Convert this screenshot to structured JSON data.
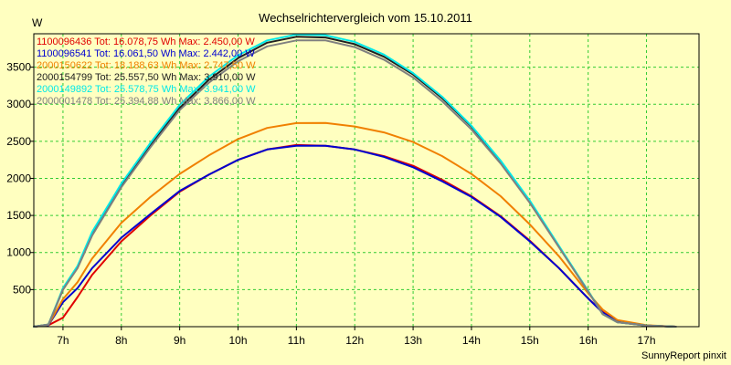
{
  "colors": {
    "background": "#ffffc0",
    "plot_background": "#ffffc0",
    "grid": "#33cc33",
    "axis": "#000000"
  },
  "footer": "SunnyReport pinxit",
  "chart_data": {
    "type": "line",
    "title": "Wechselrichtervergleich vom 15.10.2011",
    "ylabel": "W",
    "xlabel": "",
    "x_unit": "h",
    "xlim": [
      6.5,
      17.9
    ],
    "ylim": [
      0,
      3950
    ],
    "x_ticks": [
      7,
      8,
      9,
      10,
      11,
      12,
      13,
      14,
      15,
      16,
      17
    ],
    "x_tick_labels": [
      "7h",
      "8h",
      "9h",
      "10h",
      "11h",
      "12h",
      "13h",
      "14h",
      "15h",
      "16h",
      "17h"
    ],
    "y_ticks": [
      500,
      1000,
      1500,
      2000,
      2500,
      3000,
      3500
    ],
    "y_tick_labels": [
      "500",
      "1000",
      "1500",
      "2000",
      "2500",
      "3000",
      "3500"
    ],
    "grid": true,
    "legend_position": "top-left",
    "series": [
      {
        "name": "1100096436 Tot: 16.078,75 Wh Max: 2.450,00 W",
        "color": "#e00000",
        "x": [
          6.5,
          6.75,
          7.0,
          7.25,
          7.5,
          8.0,
          8.5,
          9.0,
          9.5,
          10.0,
          10.5,
          11.0,
          11.5,
          12.0,
          12.5,
          13.0,
          13.5,
          14.0,
          14.5,
          15.0,
          15.5,
          16.0,
          16.25,
          16.5,
          17.0,
          17.5
        ],
        "y": [
          0,
          20,
          120,
          400,
          700,
          1150,
          1500,
          1820,
          2050,
          2250,
          2390,
          2450,
          2440,
          2390,
          2300,
          2170,
          1980,
          1760,
          1490,
          1160,
          790,
          380,
          200,
          70,
          15,
          0
        ]
      },
      {
        "name": "1100096541 Tot: 16.061,50 Wh Max: 2.442,00 W",
        "color": "#0000d0",
        "x": [
          6.5,
          6.75,
          7.0,
          7.25,
          7.5,
          8.0,
          8.5,
          9.0,
          9.5,
          10.0,
          10.5,
          11.0,
          11.5,
          12.0,
          12.5,
          13.0,
          13.5,
          14.0,
          14.5,
          15.0,
          15.5,
          16.0,
          16.25,
          16.5,
          17.0,
          17.5
        ],
        "y": [
          0,
          20,
          330,
          520,
          790,
          1200,
          1520,
          1830,
          2050,
          2250,
          2390,
          2440,
          2440,
          2390,
          2290,
          2150,
          1960,
          1750,
          1480,
          1150,
          790,
          380,
          190,
          70,
          15,
          0
        ]
      },
      {
        "name": "2000150622 Tot: 18.188,63 Wh Max: 2.747,50 W",
        "color": "#f08000",
        "x": [
          6.5,
          6.75,
          7.0,
          7.25,
          7.5,
          8.0,
          8.5,
          9.0,
          9.5,
          10.0,
          10.5,
          11.0,
          11.5,
          12.0,
          12.5,
          13.0,
          13.5,
          14.0,
          14.5,
          15.0,
          15.5,
          16.0,
          16.25,
          16.5,
          17.0,
          17.5
        ],
        "y": [
          0,
          25,
          370,
          600,
          920,
          1400,
          1750,
          2060,
          2310,
          2530,
          2680,
          2745,
          2747,
          2700,
          2620,
          2490,
          2300,
          2060,
          1760,
          1380,
          950,
          450,
          230,
          90,
          20,
          0
        ]
      },
      {
        "name": "2000154799 Tot: 25.557,50 Wh Max: 3.910,00 W",
        "color": "#202020",
        "x": [
          6.5,
          6.75,
          7.0,
          7.25,
          7.5,
          8.0,
          8.5,
          9.0,
          9.5,
          10.0,
          10.5,
          11.0,
          11.5,
          12.0,
          12.5,
          13.0,
          13.5,
          14.0,
          14.5,
          15.0,
          15.5,
          16.0,
          16.25,
          16.5,
          17.0,
          17.5
        ],
        "y": [
          0,
          30,
          500,
          800,
          1250,
          1900,
          2450,
          2950,
          3330,
          3620,
          3830,
          3910,
          3900,
          3810,
          3640,
          3400,
          3080,
          2700,
          2230,
          1690,
          1080,
          480,
          170,
          60,
          15,
          0
        ]
      },
      {
        "name": "2000149892 Tot: 25.578,75 Wh Max: 3.941,00 W",
        "color": "#00e8e8",
        "x": [
          6.5,
          6.75,
          7.0,
          7.25,
          7.5,
          8.0,
          8.5,
          9.0,
          9.5,
          10.0,
          10.5,
          11.0,
          11.5,
          12.0,
          12.5,
          13.0,
          13.5,
          14.0,
          14.5,
          15.0,
          15.5,
          16.0,
          16.25,
          16.5,
          17.0,
          17.5
        ],
        "y": [
          0,
          30,
          520,
          820,
          1280,
          1930,
          2480,
          2990,
          3370,
          3660,
          3860,
          3940,
          3930,
          3840,
          3670,
          3420,
          3100,
          2710,
          2240,
          1700,
          1090,
          480,
          170,
          60,
          15,
          0
        ]
      },
      {
        "name": "2000001478 Tot: 25.394,88 Wh Max: 3.866,00 W",
        "color": "#808080",
        "x": [
          6.5,
          6.75,
          7.0,
          7.25,
          7.5,
          8.0,
          8.5,
          9.0,
          9.5,
          10.0,
          10.5,
          11.0,
          11.5,
          12.0,
          12.5,
          13.0,
          13.5,
          14.0,
          14.5,
          15.0,
          15.5,
          16.0,
          16.25,
          16.5,
          17.0,
          17.5
        ],
        "y": [
          0,
          30,
          500,
          790,
          1230,
          1880,
          2420,
          2920,
          3290,
          3580,
          3780,
          3860,
          3860,
          3770,
          3600,
          3360,
          3040,
          2660,
          2200,
          1670,
          1070,
          470,
          170,
          60,
          15,
          0
        ]
      }
    ]
  }
}
